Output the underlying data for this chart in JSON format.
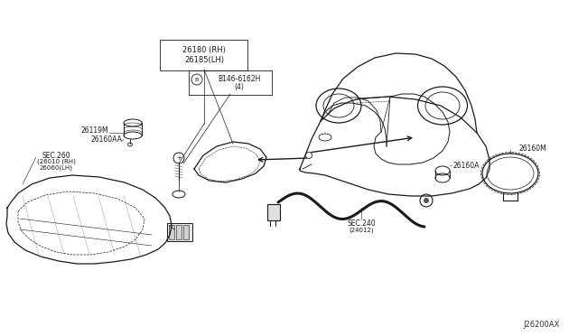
{
  "bg_color": "#ffffff",
  "line_color": "#1a1a1a",
  "text_color": "#1a1a1a",
  "fig_width": 6.4,
  "fig_height": 3.72,
  "dpi": 100,
  "diagram_id": "J26200AX",
  "label_26180": "26180 (RH)",
  "label_26185": "26185(LH)",
  "label_bulb": "B146-6162H",
  "label_bulb2": "(4)",
  "label_26119M": "26119M",
  "label_26160AA": "26160AA",
  "label_sec260": "SEC.260",
  "label_sec260a": "(26010 (RH)",
  "label_sec260b": "26060(LH)",
  "label_sec240": "SEC.240",
  "label_sec240b": "(24012)",
  "label_26160A": "26160A",
  "label_26160M": "26160M"
}
